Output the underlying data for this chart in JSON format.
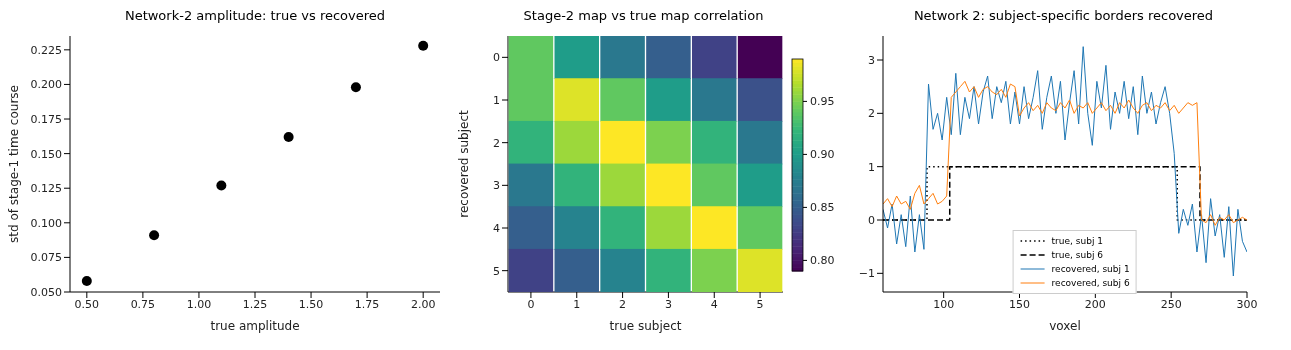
{
  "chart_data": [
    {
      "type": "scatter",
      "title": "Network-2 amplitude: true vs recovered",
      "xlabel": "true amplitude",
      "ylabel": "std of stage-1 time course",
      "x": [
        0.5,
        0.8,
        1.1,
        1.4,
        1.7,
        2.0
      ],
      "values": [
        0.058,
        0.091,
        0.127,
        0.162,
        0.198,
        0.228
      ],
      "color": "#000000",
      "marker": "circle",
      "xlim": [
        0.425,
        2.075
      ],
      "ylim": [
        0.05,
        0.235
      ],
      "xticks": [
        {
          "value": 0.5,
          "label": "0.50"
        },
        {
          "value": 0.75,
          "label": "0.75"
        },
        {
          "value": 1.0,
          "label": "1.00"
        },
        {
          "value": 1.25,
          "label": "1.25"
        },
        {
          "value": 1.5,
          "label": "1.50"
        },
        {
          "value": 1.75,
          "label": "1.75"
        },
        {
          "value": 2.0,
          "label": "2.00"
        }
      ],
      "yticks": [
        {
          "value": 0.05,
          "label": "0.050"
        },
        {
          "value": 0.075,
          "label": "0.075"
        },
        {
          "value": 0.1,
          "label": "0.100"
        },
        {
          "value": 0.125,
          "label": "0.125"
        },
        {
          "value": 0.15,
          "label": "0.150"
        },
        {
          "value": 0.175,
          "label": "0.175"
        },
        {
          "value": 0.2,
          "label": "0.200"
        },
        {
          "value": 0.225,
          "label": "0.225"
        }
      ]
    },
    {
      "type": "heatmap",
      "title": "Stage-2 map vs true map correlation",
      "xlabel": "true subject",
      "ylabel": "recovered subject",
      "categories": [
        "0",
        "1",
        "2",
        "3",
        "4",
        "5"
      ],
      "y_categories": [
        "0",
        "1",
        "2",
        "3",
        "4",
        "5"
      ],
      "cells": [
        [
          0.94,
          0.9,
          0.87,
          0.85,
          0.83,
          0.79
        ],
        [
          0.94,
          0.98,
          0.94,
          0.9,
          0.87,
          0.84
        ],
        [
          0.92,
          0.96,
          0.99,
          0.95,
          0.92,
          0.87
        ],
        [
          0.87,
          0.92,
          0.96,
          0.99,
          0.94,
          0.9
        ],
        [
          0.85,
          0.88,
          0.92,
          0.96,
          0.99,
          0.94
        ],
        [
          0.83,
          0.85,
          0.88,
          0.92,
          0.95,
          0.98
        ]
      ],
      "clim": [
        0.79,
        0.99
      ],
      "cticks": [
        {
          "value": 0.8,
          "label": "0.80"
        },
        0.85,
        {
          "value": 0.9,
          "label": "0.90"
        },
        0.95
      ]
    },
    {
      "type": "line",
      "title": "Network 2: subject-specific borders recovered",
      "xlabel": "voxel",
      "legend": "bottom",
      "xlim": [
        60,
        300
      ],
      "ylim": [
        -1.35,
        3.45
      ],
      "xticks": [
        100,
        150,
        200,
        250,
        300
      ],
      "yticks": [
        {
          "value": -1,
          "label": "−1"
        },
        0,
        1,
        2,
        3
      ],
      "x": [
        60,
        63,
        66,
        69,
        72,
        75,
        78,
        81,
        84,
        87,
        90,
        93,
        96,
        99,
        102,
        105,
        108,
        111,
        114,
        117,
        120,
        123,
        126,
        129,
        132,
        135,
        138,
        141,
        144,
        147,
        150,
        153,
        156,
        159,
        162,
        165,
        168,
        171,
        174,
        177,
        180,
        183,
        186,
        189,
        192,
        195,
        198,
        201,
        204,
        207,
        210,
        213,
        216,
        219,
        222,
        225,
        228,
        231,
        234,
        237,
        240,
        243,
        246,
        249,
        252,
        255,
        258,
        261,
        264,
        267,
        270,
        273,
        276,
        279,
        282,
        285,
        288,
        291,
        294,
        297,
        300
      ],
      "series": [
        {
          "name": "true, subj 1",
          "color": "#000000",
          "line_style": "dotted",
          "x": [
            60,
            89,
            89,
            254,
            254,
            300
          ],
          "values": [
            0,
            0,
            1,
            1,
            0,
            0
          ]
        },
        {
          "name": "true, subj 6",
          "color": "#000000",
          "line_style": "dashed",
          "x": [
            60,
            104,
            104,
            269,
            269,
            300
          ],
          "values": [
            0,
            0,
            1,
            1,
            0,
            0
          ]
        },
        {
          "name": "recovered, subj 1",
          "color": "#1f77b4",
          "line_style": "solid",
          "values": [
            0.2,
            -0.15,
            0.3,
            -0.45,
            0.1,
            -0.5,
            0.45,
            -0.6,
            0.1,
            -0.55,
            2.55,
            1.7,
            2.0,
            1.5,
            2.3,
            1.6,
            2.75,
            1.6,
            2.3,
            1.9,
            2.5,
            1.8,
            2.4,
            2.7,
            1.9,
            2.5,
            2.2,
            2.6,
            1.8,
            2.4,
            1.8,
            2.5,
            1.9,
            2.3,
            2.8,
            1.7,
            2.3,
            2.7,
            2.0,
            2.6,
            1.5,
            2.2,
            2.8,
            1.8,
            3.25,
            2.0,
            1.4,
            2.6,
            2.1,
            2.9,
            1.7,
            2.4,
            2.0,
            2.6,
            1.9,
            2.5,
            1.6,
            2.7,
            2.0,
            2.4,
            1.8,
            2.2,
            2.5,
            2.0,
            1.25,
            -0.25,
            0.2,
            -0.1,
            0.3,
            -0.6,
            0.1,
            -0.8,
            0.4,
            -0.3,
            0.1,
            -0.7,
            0.25,
            -1.05,
            0.2,
            -0.4,
            -0.6
          ]
        },
        {
          "name": "recovered, subj 6",
          "color": "#ff7f0e",
          "line_style": "solid",
          "values": [
            0.3,
            0.4,
            0.25,
            0.45,
            0.3,
            0.35,
            0.2,
            0.5,
            0.65,
            0.3,
            0.4,
            0.5,
            0.3,
            0.35,
            0.45,
            2.3,
            2.4,
            2.5,
            2.6,
            2.4,
            2.5,
            2.3,
            2.45,
            2.5,
            2.4,
            2.35,
            2.45,
            2.3,
            2.55,
            2.5,
            1.95,
            2.1,
            2.2,
            2.05,
            2.15,
            2.0,
            2.2,
            2.1,
            2.05,
            2.2,
            2.1,
            2.25,
            2.0,
            2.15,
            2.1,
            2.2,
            2.0,
            2.1,
            2.2,
            2.05,
            2.15,
            2.0,
            2.2,
            2.1,
            2.25,
            2.1,
            2.0,
            2.15,
            2.2,
            2.05,
            2.15,
            2.1,
            2.2,
            2.05,
            2.15,
            2.0,
            2.1,
            2.2,
            2.15,
            2.2,
            0.0,
            -0.05,
            0.1,
            -0.1,
            0.05,
            0.0,
            0.1,
            -0.05,
            0.0,
            0.05,
            0.0
          ]
        }
      ]
    }
  ]
}
